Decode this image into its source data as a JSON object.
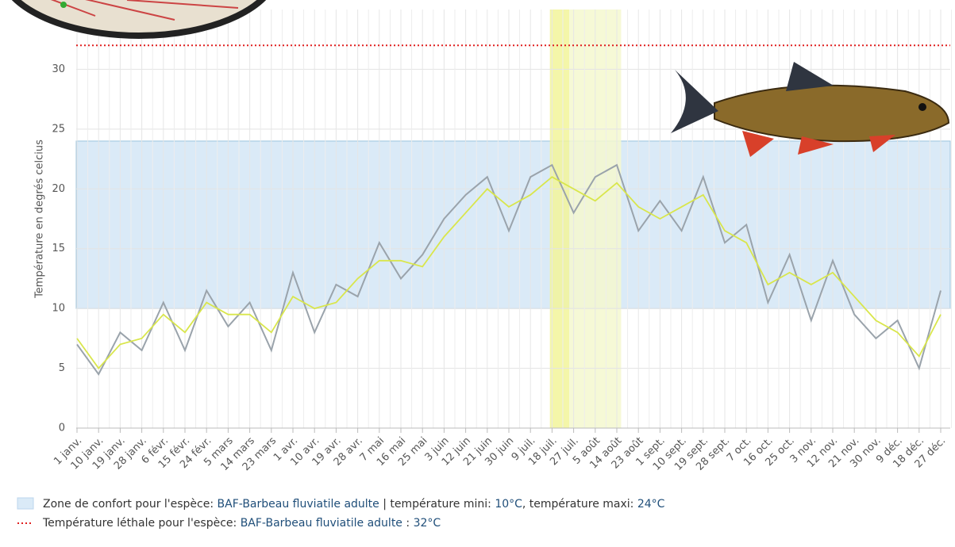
{
  "chart_data": {
    "type": "line",
    "y_label": "Température en degrés celcius",
    "categories": [
      "1 janv.",
      "10 janv.",
      "19 janv.",
      "28 janv.",
      "6 févr.",
      "15 févr.",
      "24 févr.",
      "5 mars",
      "14 mars",
      "23 mars",
      "1 avr.",
      "10 avr.",
      "19 avr.",
      "28 avr.",
      "7 mai",
      "16 mai",
      "25 mai",
      "3 juin",
      "12 juin",
      "21 juin",
      "30 juin",
      "9 juil.",
      "18 juil.",
      "27 juil.",
      "5 août",
      "14 août",
      "23 août",
      "1 sept.",
      "10 sept.",
      "19 sept.",
      "28 sept.",
      "7 oct.",
      "16 oct.",
      "25 oct.",
      "3 nov.",
      "12 nov.",
      "21 nov.",
      "30 nov.",
      "9 déc.",
      "18 déc.",
      "27 déc."
    ],
    "series": [
      {
        "color": "#9aa3ab",
        "values": [
          7,
          4.5,
          8,
          6.5,
          10.5,
          6.5,
          11.5,
          8.5,
          10.5,
          6.5,
          13,
          8,
          12,
          11,
          15.5,
          12.5,
          14.5,
          17.5,
          19.5,
          21,
          16.5,
          21,
          22,
          18,
          21,
          22,
          16.5,
          19,
          16.5,
          21,
          15.5,
          17,
          10.5,
          14.5,
          9,
          14,
          9.5,
          7.5,
          9,
          5,
          11.5
        ]
      },
      {
        "color": "#d9e64c",
        "values": [
          7.5,
          5,
          7,
          7.5,
          9.5,
          8,
          10.5,
          9.5,
          9.5,
          8,
          11,
          10,
          10.5,
          12.5,
          14,
          14,
          13.5,
          16,
          18,
          20,
          18.5,
          19.5,
          21,
          20,
          19,
          20.5,
          18.5,
          17.5,
          18.5,
          19.5,
          16.5,
          15.5,
          12,
          13,
          12,
          13,
          11,
          9,
          8,
          6,
          9.5
        ]
      }
    ],
    "ylim": [
      0,
      35
    ],
    "yticks": [
      0,
      5,
      10,
      15,
      20,
      25,
      30
    ],
    "grid": true,
    "comfort_zone": {
      "min": 10,
      "max": 24,
      "color": "#daeaf7"
    },
    "lethal": {
      "value": 32,
      "color": "#e02020"
    },
    "highlights": [
      {
        "from": 21.9,
        "to": 22.8,
        "color": "#f2f59a"
      },
      {
        "from": 22.8,
        "to": 25.2,
        "color": "#f5f8cf"
      }
    ],
    "legend": [
      {
        "text": "Zone de confort pour l'espèce: ",
        "species": "BAF-Barbeau fluviatile adulte",
        "mid": " | température mini: ",
        "min_label": "10°C",
        "mid2": ", température maxi: ",
        "max_label": "24°C"
      },
      {
        "text": "Température léthale pour l'espèce: ",
        "species": "BAF-Barbeau fluviatile adulte",
        "mid": " : ",
        "value_label": "32°C"
      }
    ]
  }
}
